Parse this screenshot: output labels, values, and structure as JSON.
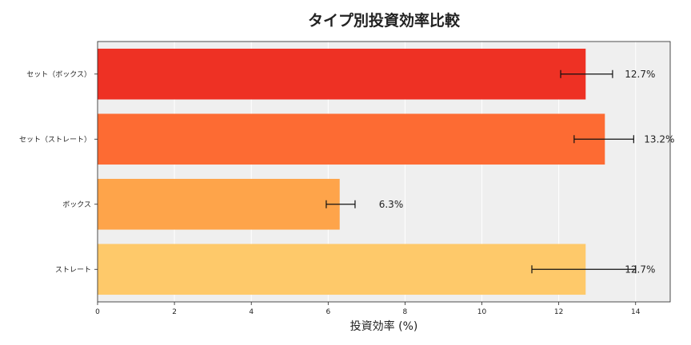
{
  "chart_data": {
    "type": "bar",
    "orientation": "horizontal",
    "title": "タイプ別投資効率比較",
    "xlabel": "投資効率 (%)",
    "ylabel": "",
    "xlim": [
      0,
      14.9
    ],
    "xticks": [
      0,
      2,
      4,
      6,
      8,
      10,
      12,
      14
    ],
    "grid": true,
    "categories": [
      "セット（ボックス）",
      "セット（ストレート）",
      "ボックス",
      "ストレート"
    ],
    "values": [
      12.7,
      13.2,
      6.3,
      12.7
    ],
    "error_low": [
      12.05,
      12.4,
      5.95,
      11.3
    ],
    "error_high": [
      13.4,
      13.95,
      6.7,
      14.0
    ],
    "data_labels": [
      "12.7%",
      "13.2%",
      "6.3%",
      "12.7%"
    ],
    "colors": [
      "#ee3124",
      "#fd6b33",
      "#fea44a",
      "#fec96a"
    ],
    "background_color": "#efefef"
  }
}
